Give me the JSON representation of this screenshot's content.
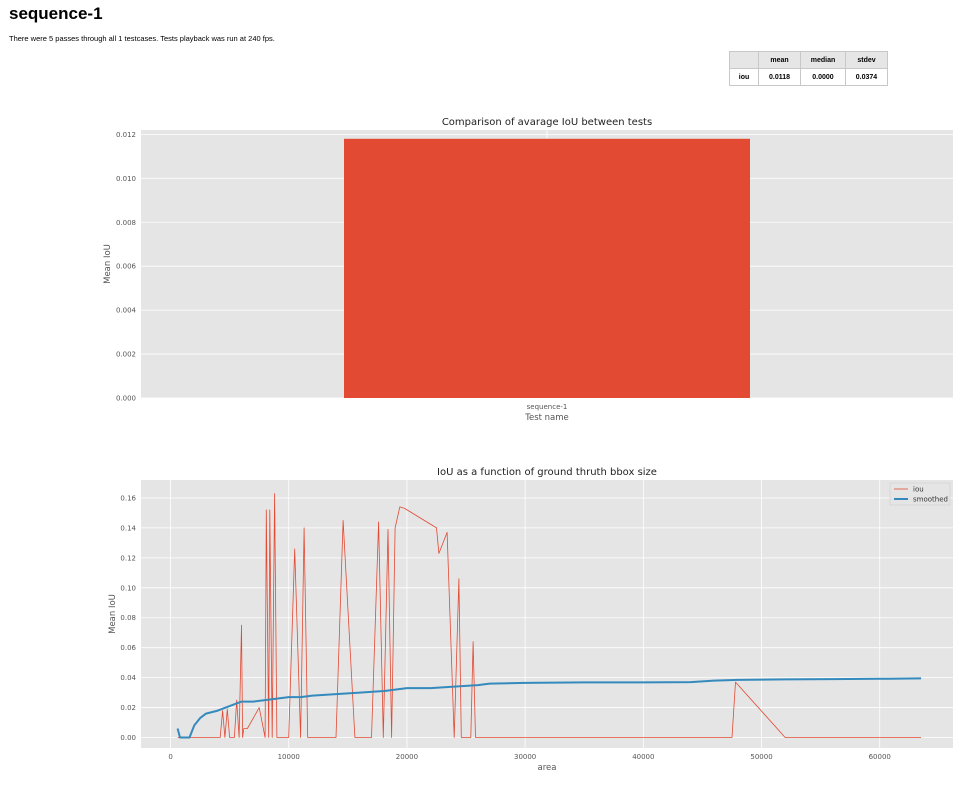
{
  "page": {
    "title": "sequence-1",
    "summary": "There were 5 passes through all 1 testcases. Tests playback was run at 240 fps."
  },
  "stats_table": {
    "headers": [
      "",
      "mean",
      "median",
      "stdev"
    ],
    "rows": [
      {
        "label": "iou",
        "mean": "0.0118",
        "median": "0.0000",
        "stdev": "0.0374"
      }
    ]
  },
  "colors": {
    "bar": "#e24a33",
    "iou_line": "#e24a33",
    "smoothed_line": "#348abd",
    "plot_bg": "#e5e5e5",
    "grid": "#ffffff"
  },
  "chart_data": [
    {
      "type": "bar",
      "title": "Comparison of avarage IoU between tests",
      "xlabel": "Test name",
      "ylabel": "Mean IoU",
      "categories": [
        "sequence-1"
      ],
      "values": [
        0.0118
      ],
      "ylim": [
        0,
        0.0122
      ],
      "yticks": [
        "0.000",
        "0.002",
        "0.004",
        "0.006",
        "0.008",
        "0.010",
        "0.012"
      ],
      "grid": true
    },
    {
      "type": "line",
      "title": "IoU as a function of ground thruth bbox size",
      "xlabel": "area",
      "ylabel": "Mean IoU",
      "xlim": [
        -2500,
        66200
      ],
      "ylim": [
        -0.007,
        0.172
      ],
      "xticks": [
        "0",
        "10000",
        "20000",
        "30000",
        "40000",
        "50000",
        "60000"
      ],
      "yticks": [
        "0.00",
        "0.02",
        "0.04",
        "0.06",
        "0.08",
        "0.10",
        "0.12",
        "0.14",
        "0.16"
      ],
      "legend": "top-right",
      "grid": true,
      "series": [
        {
          "name": "iou",
          "x": [
            600,
            800,
            1000,
            1600,
            4200,
            4400,
            4600,
            4800,
            5000,
            5200,
            5400,
            5600,
            5800,
            6000,
            6100,
            6200,
            6500,
            7500,
            8000,
            8100,
            8300,
            8400,
            8600,
            8800,
            9000,
            9500,
            10000,
            10500,
            11000,
            11300,
            11600,
            14000,
            14600,
            15600,
            17000,
            17600,
            18000,
            18400,
            18700,
            19000,
            19400,
            19800,
            22500,
            22700,
            23400,
            24000,
            24400,
            24600,
            25400,
            25600,
            25800,
            47500,
            47800,
            52000,
            63500
          ],
          "y": [
            0.0,
            0.0,
            0.0,
            0.0,
            0.0,
            0.018,
            0.0,
            0.019,
            0.0,
            0.0,
            0.0,
            0.025,
            0.0,
            0.075,
            0.0,
            0.006,
            0.006,
            0.02,
            0.0,
            0.152,
            0.0,
            0.152,
            0.0,
            0.163,
            0.0,
            0.0,
            0.0,
            0.126,
            0.0,
            0.14,
            0.0,
            0.0,
            0.145,
            0.0,
            0.0,
            0.144,
            0.0,
            0.139,
            0.0,
            0.14,
            0.154,
            0.153,
            0.14,
            0.123,
            0.137,
            0.0,
            0.106,
            0.0,
            0.0,
            0.064,
            0.0,
            0.0,
            0.037,
            0.0,
            0.0
          ]
        },
        {
          "name": "smoothed",
          "x": [
            600,
            700,
            800,
            1000,
            1600,
            2000,
            2500,
            3000,
            4000,
            5000,
            6000,
            7000,
            8000,
            9000,
            10000,
            11000,
            12000,
            14000,
            16000,
            18000,
            19000,
            20000,
            22000,
            24000,
            26000,
            27000,
            30000,
            35000,
            40000,
            44000,
            46000,
            48000,
            52000,
            56000,
            60000,
            63500
          ],
          "y": [
            0.006,
            0.003,
            0.0,
            0.0,
            0.0,
            0.008,
            0.013,
            0.016,
            0.018,
            0.021,
            0.024,
            0.024,
            0.025,
            0.026,
            0.027,
            0.027,
            0.028,
            0.029,
            0.03,
            0.031,
            0.032,
            0.033,
            0.033,
            0.034,
            0.035,
            0.036,
            0.0365,
            0.0368,
            0.0368,
            0.037,
            0.038,
            0.0385,
            0.0388,
            0.039,
            0.0392,
            0.0395
          ]
        }
      ]
    }
  ]
}
